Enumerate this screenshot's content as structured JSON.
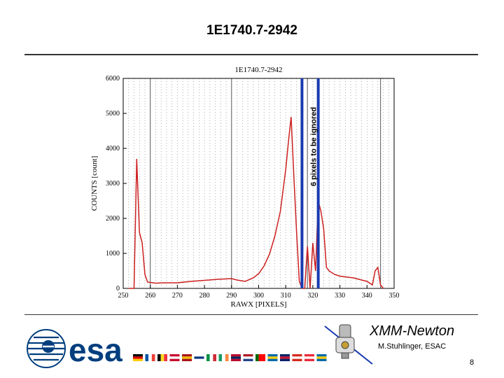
{
  "slide": {
    "title": "1E1740.7-2942",
    "mission_name": "XMM-Newton",
    "author": "M.Stuhlinger, ESAC",
    "page_number": "8"
  },
  "logo": {
    "text": "esa",
    "color": "#003e7e"
  },
  "chart_data": {
    "type": "line",
    "title": "1E1740.7-2942",
    "xlabel": "RAWX [PIXELS]",
    "ylabel": "COUNTS [count]",
    "xlim": [
      250,
      350
    ],
    "ylim": [
      0,
      6000
    ],
    "x_ticks": [
      250,
      260,
      270,
      280,
      290,
      300,
      310,
      320,
      330,
      340,
      350
    ],
    "y_ticks": [
      0,
      1000,
      2000,
      3000,
      4000,
      5000,
      6000
    ],
    "grid": "vertical dotted lines at each pixel column",
    "series": [
      {
        "color": "#cc2020",
        "x": [
          252,
          253,
          254,
          255,
          256,
          257,
          258,
          259,
          260,
          262,
          265,
          270,
          275,
          280,
          285,
          290,
          292,
          295,
          298,
          300,
          302,
          304,
          306,
          308,
          310,
          311,
          312,
          313,
          314,
          315,
          316,
          317,
          318,
          319,
          320,
          321,
          322,
          323,
          324,
          325,
          326,
          328,
          330,
          335,
          340,
          342,
          343,
          344,
          345,
          346
        ],
        "y": [
          0,
          0,
          0,
          3700,
          1600,
          1300,
          400,
          180,
          170,
          150,
          160,
          160,
          200,
          230,
          260,
          280,
          240,
          200,
          300,
          420,
          640,
          980,
          1500,
          2200,
          3400,
          4200,
          4900,
          3200,
          1600,
          200,
          0,
          0,
          1200,
          0,
          1300,
          500,
          2500,
          2200,
          1700,
          600,
          500,
          400,
          350,
          300,
          200,
          100,
          500,
          600,
          100,
          0
        ]
      }
    ],
    "annotations": [
      {
        "text": "6 pixels to be ignored",
        "x_range": [
          316,
          322
        ],
        "marker_color": "#1a3ab0"
      }
    ],
    "vertical_lines": [
      260,
      290,
      316,
      318,
      322,
      345
    ]
  },
  "flags": [
    "DE",
    "FR",
    "BE",
    "DK",
    "ES",
    "FI",
    "IT",
    "IE",
    "NO",
    "NL",
    "PT",
    "SE",
    "GB",
    "CH",
    "AT",
    "SE"
  ]
}
